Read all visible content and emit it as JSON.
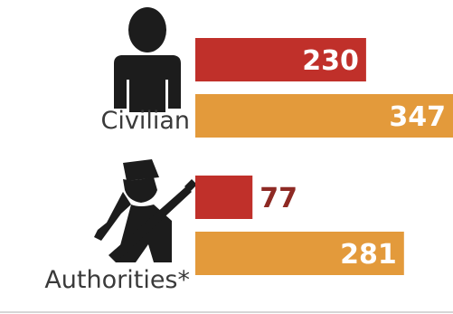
{
  "chart_data": {
    "type": "bar",
    "orientation": "horizontal",
    "categories": [
      "Civilian",
      "Authorities*"
    ],
    "series": [
      {
        "values": [
          230,
          77
        ],
        "color": "#c0302a"
      },
      {
        "values": [
          347,
          281
        ],
        "color": "#e39a3b"
      }
    ],
    "xlim": [
      0,
      347
    ],
    "grid": false,
    "legend": "none",
    "icons": [
      "person-icon",
      "soldier-with-rifle-icon"
    ],
    "label_colors": {
      "inside": "#ffffff",
      "outside": "#8e2a24"
    }
  }
}
